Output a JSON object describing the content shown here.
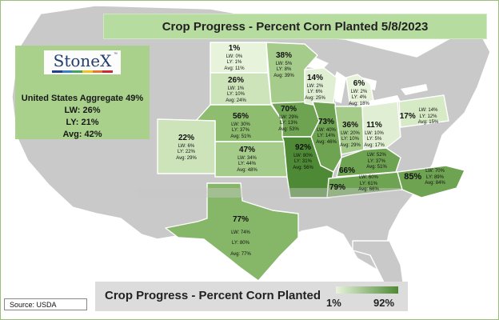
{
  "title": "Crop Progress - Percent Corn Planted 5/8/2023",
  "logo": {
    "text": "StoneX",
    "tm": "™"
  },
  "aggregate": {
    "line1": "United States Aggregate 49%",
    "line2": "LW: 26%",
    "line3": "LY: 21%",
    "line4": "Avg: 42%"
  },
  "legend": {
    "title": "Crop Progress - Percent Corn Planted",
    "min": "1%",
    "max": "92%"
  },
  "source": "Source: USDA",
  "colors": {
    "light": "#d6eac6",
    "mid": "#a6cc8b",
    "dark": "#6ea352",
    "darkest": "#4e8a35",
    "nonreporting": "#c9c9c9",
    "water": "#ffffff"
  },
  "states": [
    {
      "id": "ND",
      "pct": "1%",
      "lw": "LW: 0%",
      "ly": "LY: 1%",
      "avg": "Avg: 11%"
    },
    {
      "id": "MN",
      "pct": "38%",
      "lw": "LW: 5%",
      "ly": "LY: 8%",
      "avg": "Avg: 39%"
    },
    {
      "id": "WI",
      "pct": "14%",
      "lw": "LW: 2%",
      "ly": "LY: 6%",
      "avg": "Avg: 25%"
    },
    {
      "id": "MI",
      "pct": "6%",
      "lw": "LW: 2%",
      "ly": "LY: 4%",
      "avg": "Avg: 18%"
    },
    {
      "id": "SD",
      "pct": "26%",
      "lw": "LW: 1%",
      "ly": "LY: 10%",
      "avg": "Avg: 24%"
    },
    {
      "id": "NE",
      "pct": "56%",
      "lw": "LW: 30%",
      "ly": "LY: 37%",
      "avg": "Avg: 51%"
    },
    {
      "id": "IA",
      "pct": "70%",
      "lw": "LW: 29%",
      "ly": "LY: 13%",
      "avg": "Avg: 53%"
    },
    {
      "id": "IL",
      "pct": "73%",
      "lw": "LW: 40%",
      "ly": "LY: 14%",
      "avg": "Avg: 46%"
    },
    {
      "id": "IN",
      "pct": "36%",
      "lw": "LW: 20%",
      "ly": "LY: 10%",
      "avg": "Avg: 29%"
    },
    {
      "id": "OH",
      "pct": "11%",
      "lw": "LW: 10%",
      "ly": "LY: 5%",
      "avg": "Avg: 17%"
    },
    {
      "id": "PA",
      "pct": "17%",
      "lw": "LW: 14%",
      "ly": "LY: 12%",
      "avg": "Avg: 15%"
    },
    {
      "id": "CO",
      "pct": "22%",
      "lw": "LW: 6%",
      "ly": "LY: 22%",
      "avg": "Avg: 29%"
    },
    {
      "id": "KS",
      "pct": "47%",
      "lw": "LW: 34%",
      "ly": "LY: 44%",
      "avg": "Avg: 48%"
    },
    {
      "id": "MO",
      "pct": "92%",
      "lw": "LW: 80%",
      "ly": "LY: 31%",
      "avg": "Avg: 56%"
    },
    {
      "id": "KY",
      "pct": "",
      "lw": "LW: 52%",
      "ly": "LY: 37%",
      "avg": "Avg: 51%"
    },
    {
      "id": "TN",
      "pct": "66%",
      "lw": "LW: 60%",
      "ly": "LY: 61%",
      "avg": "Avg: 66%"
    },
    {
      "id": "TN2",
      "pct": "79%",
      "lw": "",
      "ly": "",
      "avg": ""
    },
    {
      "id": "NC",
      "pct": "85%",
      "lw": "LW: 70%",
      "ly": "LY: 89%",
      "avg": "Avg: 84%"
    },
    {
      "id": "TX",
      "pct": "77%",
      "lw": "LW: 74%",
      "ly": "LY: 80%",
      "avg": "Avg: 77%"
    }
  ]
}
